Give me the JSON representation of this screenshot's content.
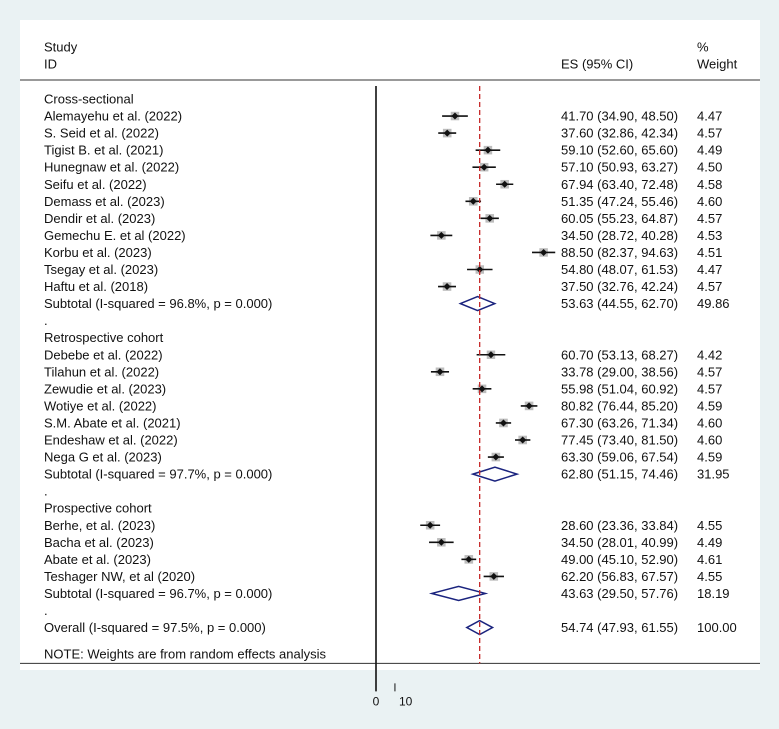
{
  "chart_data": {
    "type": "forest",
    "header": {
      "study_line1": "Study",
      "study_line2": "ID",
      "es_label": "ES (95% CI)",
      "weight_line1": "%",
      "weight_line2": "Weight"
    },
    "reference_line": 54.74,
    "x_ticks": [
      "0",
      "10"
    ],
    "note": "NOTE: Weights are from random effects analysis",
    "groups": [
      {
        "name": "Cross-sectional",
        "studies": [
          {
            "label": "Alemayehu et al. (2022)",
            "es": 41.7,
            "lo": 34.9,
            "hi": 48.5,
            "text": "41.70 (34.90, 48.50)",
            "weight": "4.47"
          },
          {
            "label": "S. Seid et al. (2022)",
            "es": 37.6,
            "lo": 32.86,
            "hi": 42.34,
            "text": "37.60 (32.86, 42.34)",
            "weight": "4.57"
          },
          {
            "label": "Tigist B. et al. (2021)",
            "es": 59.1,
            "lo": 52.6,
            "hi": 65.6,
            "text": "59.10 (52.60, 65.60)",
            "weight": "4.49"
          },
          {
            "label": "Hunegnaw et al. (2022)",
            "es": 57.1,
            "lo": 50.93,
            "hi": 63.27,
            "text": "57.10 (50.93, 63.27)",
            "weight": "4.50"
          },
          {
            "label": "Seifu et al. (2022)",
            "es": 67.94,
            "lo": 63.4,
            "hi": 72.48,
            "text": "67.94 (63.40, 72.48)",
            "weight": "4.58"
          },
          {
            "label": "Demass et al. (2023)",
            "es": 51.35,
            "lo": 47.24,
            "hi": 55.46,
            "text": "51.35 (47.24, 55.46)",
            "weight": "4.60"
          },
          {
            "label": "Dendir et al. (2023)",
            "es": 60.05,
            "lo": 55.23,
            "hi": 64.87,
            "text": "60.05 (55.23, 64.87)",
            "weight": "4.57"
          },
          {
            "label": "Gemechu E. et al (2022)",
            "es": 34.5,
            "lo": 28.72,
            "hi": 40.28,
            "text": "34.50 (28.72, 40.28)",
            "weight": "4.53"
          },
          {
            "label": "Korbu et al. (2023)",
            "es": 88.5,
            "lo": 82.37,
            "hi": 94.63,
            "text": "88.50 (82.37, 94.63)",
            "weight": "4.51"
          },
          {
            "label": "Tsegay et al. (2023)",
            "es": 54.8,
            "lo": 48.07,
            "hi": 61.53,
            "text": "54.80 (48.07, 61.53)",
            "weight": "4.47"
          },
          {
            "label": "Haftu et al. (2018)",
            "es": 37.5,
            "lo": 32.76,
            "hi": 42.24,
            "text": "37.50 (32.76, 42.24)",
            "weight": "4.57"
          }
        ],
        "subtotal": {
          "label": "Subtotal  (I-squared = 96.8%, p = 0.000)",
          "es": 53.63,
          "lo": 44.55,
          "hi": 62.7,
          "text": "53.63 (44.55, 62.70)",
          "weight": "49.86"
        }
      },
      {
        "name": "Retrospective cohort",
        "studies": [
          {
            "label": "Debebe et al. (2022)",
            "es": 60.7,
            "lo": 53.13,
            "hi": 68.27,
            "text": "60.70 (53.13, 68.27)",
            "weight": "4.42"
          },
          {
            "label": "Tilahun et al. (2022)",
            "es": 33.78,
            "lo": 29.0,
            "hi": 38.56,
            "text": "33.78 (29.00, 38.56)",
            "weight": "4.57"
          },
          {
            "label": "Zewudie et al. (2023)",
            "es": 55.98,
            "lo": 51.04,
            "hi": 60.92,
            "text": "55.98 (51.04, 60.92)",
            "weight": "4.57"
          },
          {
            "label": "Wotiye et al. (2022)",
            "es": 80.82,
            "lo": 76.44,
            "hi": 85.2,
            "text": "80.82 (76.44, 85.20)",
            "weight": "4.59"
          },
          {
            "label": "S.M. Abate et al. (2021)",
            "es": 67.3,
            "lo": 63.26,
            "hi": 71.34,
            "text": "67.30 (63.26, 71.34)",
            "weight": "4.60"
          },
          {
            "label": "Endeshaw et al. (2022)",
            "es": 77.45,
            "lo": 73.4,
            "hi": 81.5,
            "text": "77.45 (73.40, 81.50)",
            "weight": "4.60"
          },
          {
            "label": "Nega G et al. (2023)",
            "es": 63.3,
            "lo": 59.06,
            "hi": 67.54,
            "text": "63.30 (59.06, 67.54)",
            "weight": "4.59"
          }
        ],
        "subtotal": {
          "label": "Subtotal  (I-squared = 97.7%, p = 0.000)",
          "es": 62.8,
          "lo": 51.15,
          "hi": 74.46,
          "text": "62.80 (51.15, 74.46)",
          "weight": "31.95"
        }
      },
      {
        "name": "Prospective cohort",
        "studies": [
          {
            "label": "Berhe, et al. (2023)",
            "es": 28.6,
            "lo": 23.36,
            "hi": 33.84,
            "text": "28.60 (23.36, 33.84)",
            "weight": "4.55"
          },
          {
            "label": "Bacha et al. (2023)",
            "es": 34.5,
            "lo": 28.01,
            "hi": 40.99,
            "text": "34.50 (28.01, 40.99)",
            "weight": "4.49"
          },
          {
            "label": "Abate et al. (2023)",
            "es": 49.0,
            "lo": 45.1,
            "hi": 52.9,
            "text": "49.00 (45.10, 52.90)",
            "weight": "4.61"
          },
          {
            "label": "Teshager NW, et al (2020)",
            "es": 62.2,
            "lo": 56.83,
            "hi": 67.57,
            "text": "62.20 (56.83, 67.57)",
            "weight": "4.55"
          }
        ],
        "subtotal": {
          "label": "Subtotal  (I-squared = 96.7%, p = 0.000)",
          "es": 43.63,
          "lo": 29.5,
          "hi": 57.76,
          "text": "43.63 (29.50, 57.76)",
          "weight": "18.19"
        }
      }
    ],
    "overall": {
      "label": "Overall  (I-squared = 97.5%, p = 0.000)",
      "es": 54.74,
      "lo": 47.93,
      "hi": 61.55,
      "text": "54.74 (47.93, 61.55)",
      "weight": "100.00"
    },
    "separator": ".",
    "colors": {
      "background": "#eaf2f3",
      "panel": "#ffffff",
      "diamond": "#1a237e",
      "reference": "#c62828",
      "marker": "#111111",
      "weight_box": "#bdbdbd"
    }
  }
}
